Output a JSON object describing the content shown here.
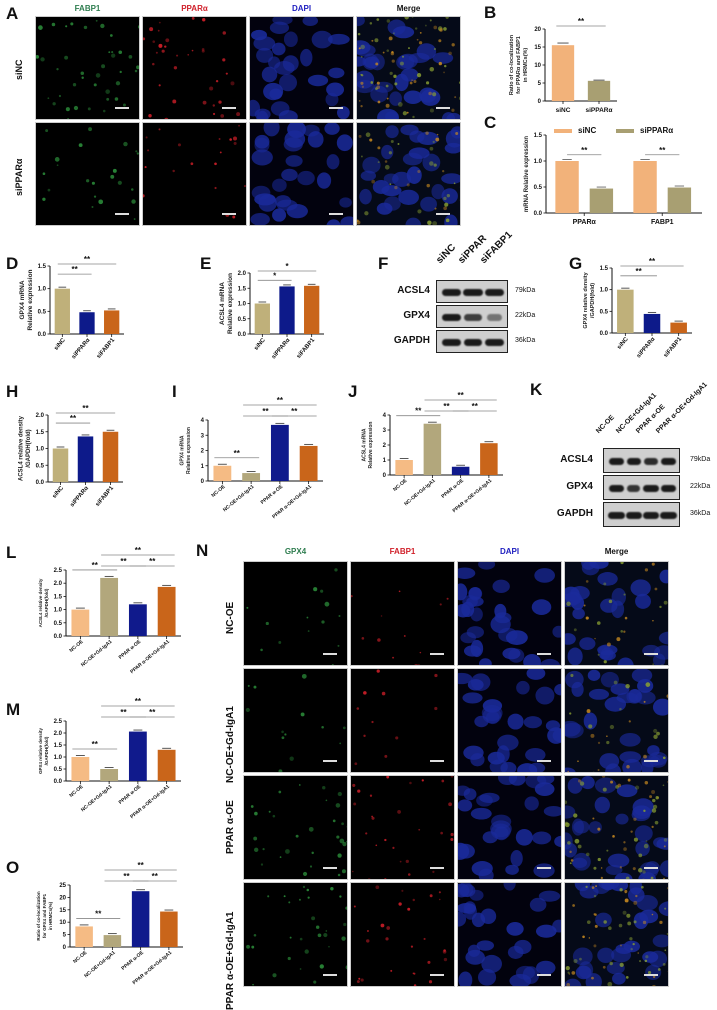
{
  "colors": {
    "siNC": "#bfb07a",
    "siPPAR": "#0d1a8a",
    "siFABP1": "#c9651a",
    "NC_OE": "#f5bb84",
    "NC_OE_Gd": "#b2a77c",
    "PPAR_OE": "#101a8c",
    "PPAR_OE_Gd": "#c9651a",
    "B_siNC": "#f2b27a",
    "B_siPPAR": "#a89f72",
    "green_label": "#2e7d4f",
    "red_label": "#d0202a",
    "blue_label": "#2020c0"
  },
  "panelA": {
    "label": "A",
    "columns": [
      "FABP1",
      "PPARα",
      "DAPI",
      "Merge"
    ],
    "rows": [
      "siNC",
      "siPPARα"
    ]
  },
  "panelF": {
    "label": "F",
    "lanes": [
      "siNC",
      "siPPAR",
      "siFABP1"
    ],
    "proteins": [
      "ACSL4",
      "GPX4",
      "GAPDH"
    ],
    "kda": [
      "79kDa",
      "22kDa",
      "36kDa"
    ]
  },
  "panelK": {
    "label": "K",
    "lanes": [
      "NC-OE",
      "NC-OE+Gd-IgA1",
      "PPAR α-OE",
      "PPAR α-OE+Gd-IgA1"
    ],
    "proteins": [
      "ACSL4",
      "GPX4",
      "GAPDH"
    ],
    "kda": [
      "79kDa",
      "22kDa",
      "36kDa"
    ]
  },
  "panelN": {
    "label": "N",
    "columns": [
      "GPX4",
      "FABP1",
      "DAPI",
      "Merge"
    ],
    "rows": [
      "NC-OE",
      "NC-OE+Gd-IgA1",
      "PPAR α-OE",
      "PPAR α-OE+Gd-IgA1"
    ]
  },
  "chart_data": [
    {
      "panel": "B",
      "type": "bar",
      "categories": [
        "siNC",
        "siPPARα"
      ],
      "values": [
        15.5,
        5.6
      ],
      "errors": [
        0.6,
        0.2
      ],
      "ylabel": "Ratio of co-localization for PPARα and FABP1 in HRMCs(%)",
      "ylim": [
        0,
        20
      ],
      "yticks": [
        0,
        5,
        10,
        15,
        20
      ],
      "significance": [
        {
          "pair": [
            0,
            1
          ],
          "label": "**"
        }
      ]
    },
    {
      "panel": "C",
      "type": "bar",
      "categories": [
        "PPARα",
        "FABP1"
      ],
      "series": [
        {
          "name": "siNC",
          "values": [
            1.0,
            1.0
          ]
        },
        {
          "name": "siPPARα",
          "values": [
            0.47,
            0.49
          ]
        }
      ],
      "ylabel": "mRNA Relative expression",
      "ylim": [
        0,
        1.5
      ],
      "yticks": [
        0.0,
        0.5,
        1.0,
        1.5
      ],
      "legend_position": "top",
      "significance": [
        {
          "group": 0,
          "label": "**"
        },
        {
          "group": 1,
          "label": "**"
        }
      ]
    },
    {
      "panel": "D",
      "type": "bar",
      "categories": [
        "siNC",
        "siPPARα",
        "siFABP1"
      ],
      "values": [
        1.0,
        0.48,
        0.52
      ],
      "ylabel": "GPX4 mRNA Relative expression",
      "ylim": [
        0,
        1.5
      ],
      "yticks": [
        0.0,
        0.5,
        1.0,
        1.5
      ],
      "significance": [
        {
          "pair": [
            0,
            1
          ],
          "label": "**"
        },
        {
          "pair": [
            0,
            2
          ],
          "label": "**"
        }
      ]
    },
    {
      "panel": "E",
      "type": "bar",
      "categories": [
        "siNC",
        "siPPARα",
        "siFABP1"
      ],
      "values": [
        1.0,
        1.56,
        1.58
      ],
      "ylabel": "ACSL4 mRNA Relative expression",
      "ylim": [
        0,
        2.0
      ],
      "yticks": [
        0.0,
        0.5,
        1.0,
        1.5,
        2.0
      ],
      "significance": [
        {
          "pair": [
            0,
            1
          ],
          "label": "*"
        },
        {
          "pair": [
            0,
            2
          ],
          "label": "*"
        }
      ]
    },
    {
      "panel": "G",
      "type": "bar",
      "categories": [
        "siNC",
        "siPPARα",
        "siFABP1"
      ],
      "values": [
        1.0,
        0.44,
        0.24
      ],
      "ylabel": "GPX4 relative density /GAPDH(fold)",
      "ylim": [
        0,
        1.5
      ],
      "yticks": [
        0.0,
        0.5,
        1.0,
        1.5
      ],
      "significance": [
        {
          "pair": [
            0,
            1
          ],
          "label": "**"
        },
        {
          "pair": [
            0,
            2
          ],
          "label": "**"
        }
      ]
    },
    {
      "panel": "H",
      "type": "bar",
      "categories": [
        "siNC",
        "siPPARα",
        "siFABP1"
      ],
      "values": [
        1.0,
        1.36,
        1.5
      ],
      "ylabel": "ACSL4 relative density /GAPDH(fold)",
      "ylim": [
        0,
        2.0
      ],
      "yticks": [
        0.0,
        0.5,
        1.0,
        1.5,
        2.0
      ],
      "significance": [
        {
          "pair": [
            0,
            1
          ],
          "label": "**"
        },
        {
          "pair": [
            0,
            2
          ],
          "label": "**"
        }
      ]
    },
    {
      "panel": "I",
      "type": "bar",
      "categories": [
        "NC-OE",
        "NC-OE+Gd-IgA1",
        "PPAR α-OE",
        "PPAR α-OE+Gd-IgA1"
      ],
      "values": [
        1.0,
        0.52,
        3.68,
        2.3
      ],
      "ylabel": "GPX4 mRNA Relative expression",
      "ylim": [
        0,
        4
      ],
      "yticks": [
        0,
        1,
        2,
        3,
        4
      ],
      "significance": [
        {
          "pair": [
            0,
            1
          ],
          "label": "**"
        },
        {
          "pair": [
            1,
            2
          ],
          "label": "**"
        },
        {
          "pair": [
            2,
            3
          ],
          "label": "**"
        },
        {
          "pair": [
            1,
            3
          ],
          "label": "**"
        }
      ]
    },
    {
      "panel": "J",
      "type": "bar",
      "categories": [
        "NC-OE",
        "NC-OE+Gd-IgA1",
        "PPAR α-OE",
        "PPAR α-OE+Gd-IgA1"
      ],
      "values": [
        1.0,
        3.42,
        0.55,
        2.12
      ],
      "ylabel": "ACSL4 mRNA Relative expression",
      "ylim": [
        0,
        4
      ],
      "yticks": [
        0,
        1,
        2,
        3,
        4
      ],
      "significance": [
        {
          "pair": [
            0,
            1
          ],
          "label": "**"
        },
        {
          "pair": [
            1,
            2
          ],
          "label": "**"
        },
        {
          "pair": [
            2,
            3
          ],
          "label": "**"
        },
        {
          "pair": [
            1,
            3
          ],
          "label": "**"
        }
      ]
    },
    {
      "panel": "L",
      "type": "bar",
      "categories": [
        "NC-OE",
        "NC-OE+Gd-IgA1",
        "PPAR α-OE",
        "PPAR α-OE+Gd-IgA1"
      ],
      "values": [
        1.0,
        2.2,
        1.2,
        1.86
      ],
      "ylabel": "ACSL4 relative density /GAPDH(fold)",
      "ylim": [
        0,
        2.5
      ],
      "yticks": [
        0.0,
        0.5,
        1.0,
        1.5,
        2.0,
        2.5
      ],
      "significance": [
        {
          "pair": [
            0,
            1
          ],
          "label": "**"
        },
        {
          "pair": [
            1,
            2
          ],
          "label": "**"
        },
        {
          "pair": [
            2,
            3
          ],
          "label": "**"
        },
        {
          "pair": [
            1,
            3
          ],
          "label": "**"
        }
      ]
    },
    {
      "panel": "M",
      "type": "bar",
      "categories": [
        "NC-OE",
        "NC-OE+Gd-IgA1",
        "PPAR α-OE",
        "PPAR α-OE+Gd-IgA1"
      ],
      "values": [
        1.0,
        0.5,
        2.06,
        1.3
      ],
      "ylabel": "GPX4 relative density /GAPDH(fold)",
      "ylim": [
        0,
        2.5
      ],
      "yticks": [
        0.0,
        0.5,
        1.0,
        1.5,
        2.0,
        2.5
      ],
      "significance": [
        {
          "pair": [
            0,
            1
          ],
          "label": "**"
        },
        {
          "pair": [
            1,
            2
          ],
          "label": "**"
        },
        {
          "pair": [
            2,
            3
          ],
          "label": "**"
        },
        {
          "pair": [
            1,
            3
          ],
          "label": "**"
        }
      ]
    },
    {
      "panel": "O",
      "type": "bar",
      "categories": [
        "NC-OE",
        "NC-OE+Gd-IgA1",
        "PPAR α-OE",
        "PPAR α-OE+Gd-IgA1"
      ],
      "values": [
        8.3,
        4.8,
        22.5,
        14.3
      ],
      "ylabel": "Ratio of co-localization for GPX4 and FABP1 in HRMCs(%)",
      "ylim": [
        0,
        25
      ],
      "yticks": [
        0,
        5,
        10,
        15,
        20,
        25
      ],
      "significance": [
        {
          "pair": [
            0,
            1
          ],
          "label": "**"
        },
        {
          "pair": [
            1,
            2
          ],
          "label": "**"
        },
        {
          "pair": [
            2,
            3
          ],
          "label": "**"
        },
        {
          "pair": [
            1,
            3
          ],
          "label": "**"
        }
      ]
    }
  ]
}
